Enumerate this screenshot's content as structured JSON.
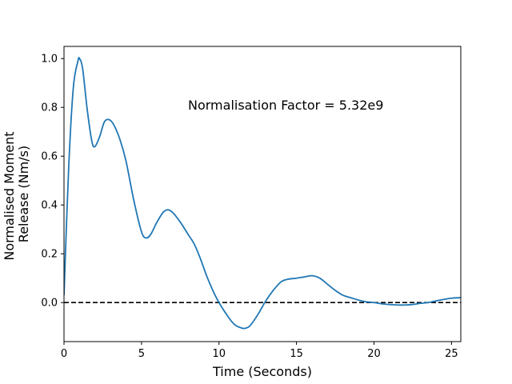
{
  "chart_data": {
    "type": "line",
    "title": "",
    "xlabel": "Time (Seconds)",
    "ylabel_lines": [
      "Normalised Moment",
      "Release (Nm/s)"
    ],
    "xlim": [
      0,
      25.6
    ],
    "ylim": [
      -0.16,
      1.05
    ],
    "x_ticks": [
      0,
      5,
      10,
      15,
      20,
      25
    ],
    "x_tick_labels": [
      "0",
      "5",
      "10",
      "15",
      "20",
      "25"
    ],
    "y_ticks": [
      0.0,
      0.2,
      0.4,
      0.6,
      0.8,
      1.0
    ],
    "y_tick_labels": [
      "0.0",
      "0.2",
      "0.4",
      "0.6",
      "0.8",
      "1.0"
    ],
    "grid": false,
    "annotation": {
      "text": "Normalisation Factor = 5.32e9",
      "x": 8.0,
      "y": 0.81
    },
    "reference_line": {
      "y": 0,
      "style": "dashed",
      "color": "#000000"
    },
    "series": [
      {
        "color": "#1f77b4",
        "x": [
          0,
          0.3,
          0.6,
          0.9,
          1.0,
          1.2,
          1.5,
          1.8,
          2.0,
          2.3,
          2.6,
          2.9,
          3.2,
          3.6,
          4.0,
          4.5,
          5.0,
          5.3,
          5.6,
          6.0,
          6.4,
          6.7,
          7.0,
          7.5,
          8.0,
          8.4,
          8.8,
          9.2,
          9.6,
          10.0,
          10.5,
          11.0,
          11.5,
          11.7,
          12.0,
          12.5,
          13.0,
          13.5,
          14.0,
          14.4,
          15.0,
          15.5,
          16.0,
          16.5,
          17.0,
          17.5,
          18.0,
          18.5,
          19.0,
          19.5,
          20.0,
          20.5,
          21.0,
          21.5,
          22.0,
          22.5,
          23.0,
          23.5,
          24.0,
          24.5,
          25.0,
          25.6
        ],
        "y": [
          0.03,
          0.55,
          0.88,
          0.99,
          1.0,
          0.96,
          0.79,
          0.66,
          0.64,
          0.68,
          0.74,
          0.75,
          0.73,
          0.67,
          0.58,
          0.42,
          0.29,
          0.265,
          0.28,
          0.33,
          0.37,
          0.38,
          0.37,
          0.33,
          0.28,
          0.24,
          0.18,
          0.11,
          0.05,
          0.0,
          -0.05,
          -0.09,
          -0.105,
          -0.105,
          -0.095,
          -0.05,
          0.005,
          0.05,
          0.085,
          0.095,
          0.1,
          0.105,
          0.11,
          0.1,
          0.075,
          0.05,
          0.03,
          0.02,
          0.01,
          0.003,
          0.0,
          -0.005,
          -0.008,
          -0.01,
          -0.01,
          -0.008,
          -0.003,
          0.0,
          0.007,
          0.013,
          0.018,
          0.02
        ]
      }
    ]
  }
}
